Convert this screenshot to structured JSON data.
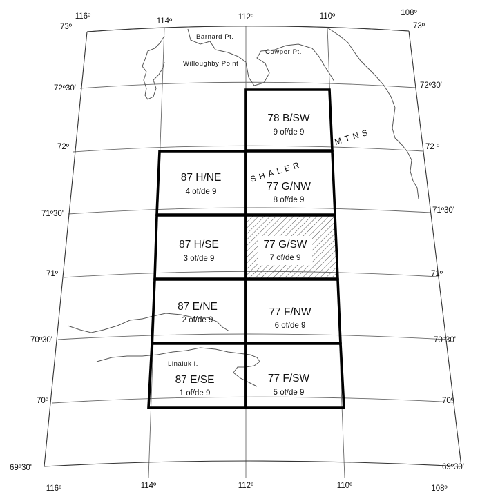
{
  "map": {
    "top_longitude_labels": [
      "116º",
      "114º",
      "112º",
      "110º",
      "108º"
    ],
    "bottom_longitude_labels": [
      "116º",
      "114º",
      "112º",
      "110º",
      "108º"
    ],
    "left_latitude_labels": [
      "73º",
      "72º30'",
      "72º",
      "71º30'",
      "71º",
      "70º30'",
      "70º",
      "69º30'"
    ],
    "right_latitude_labels": [
      "73º",
      "72º30'",
      "72 º",
      "71º30'",
      "71º",
      "70º30'",
      "70º",
      "69º30'"
    ],
    "place_names": {
      "barnard": "Barnard Pt.",
      "cowper": "Cowper Pt.",
      "willoughby": "Willoughby Point",
      "linaluk": "Linaluk I.",
      "shaler": "SHALER",
      "mtns": "MTNS"
    },
    "sheets": [
      {
        "code": "78 B/SW",
        "number": "9 of/de 9",
        "highlighted": false
      },
      {
        "code": "87 H/NE",
        "number": "4 of/de 9",
        "highlighted": false
      },
      {
        "code": "77 G/NW",
        "number": "8 of/de 9",
        "highlighted": false
      },
      {
        "code": "87 H/SE",
        "number": "3 of/de 9",
        "highlighted": false
      },
      {
        "code": "77 G/SW",
        "number": "7 of/de 9",
        "highlighted": true
      },
      {
        "code": "87 E/NE",
        "number": "2 of/de 9",
        "highlighted": false
      },
      {
        "code": "77 F/NW",
        "number": "6 of/de 9",
        "highlighted": false
      },
      {
        "code": "87 E/SE",
        "number": "1 of/de 9",
        "highlighted": false
      },
      {
        "code": "77 F/SW",
        "number": "5 of/de 9",
        "highlighted": false
      }
    ],
    "colors": {
      "sheet_outline": "#000000",
      "graticule": "#6a6a6a",
      "hatch": "#555555"
    }
  }
}
